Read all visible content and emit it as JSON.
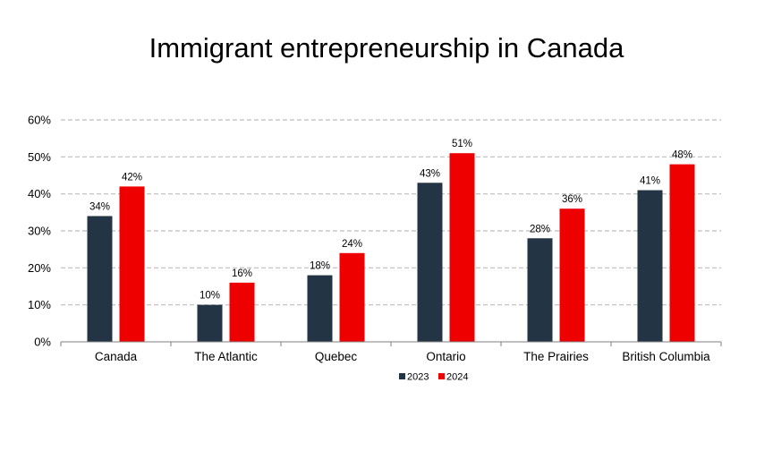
{
  "chart_data": {
    "type": "bar",
    "title": "Immigrant entrepreneurship in Canada",
    "categories": [
      "Canada",
      "The Atlantic",
      "Quebec",
      "Ontario",
      "The Prairies",
      "British Columbia"
    ],
    "series": [
      {
        "name": "2023",
        "color": "#233545",
        "values": [
          34,
          10,
          18,
          43,
          28,
          41
        ],
        "labels": [
          "34%",
          "10%",
          "18%",
          "43%",
          "28%",
          "41%"
        ]
      },
      {
        "name": "2024",
        "color": "#ee0000",
        "values": [
          42,
          16,
          24,
          51,
          36,
          48
        ],
        "labels": [
          "42%",
          "16%",
          "24%",
          "51%",
          "36%",
          "48%"
        ]
      }
    ],
    "ylim": [
      0,
      60
    ],
    "yticks": [
      0,
      10,
      20,
      30,
      40,
      50,
      60
    ],
    "ytick_labels": [
      "0%",
      "10%",
      "20%",
      "30%",
      "40%",
      "50%",
      "60%"
    ],
    "grid": true,
    "legend_position": "bottom"
  }
}
